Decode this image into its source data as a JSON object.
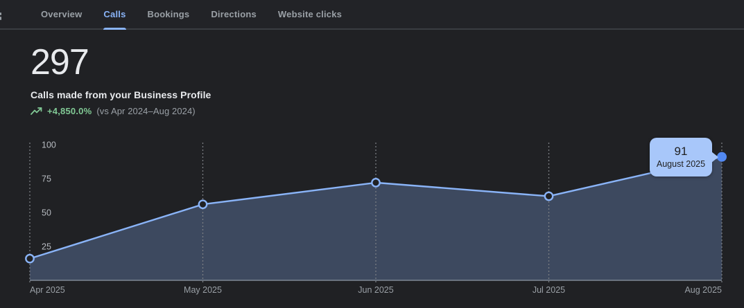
{
  "header": {
    "tabs": [
      {
        "label": "Overview"
      },
      {
        "label": "Calls"
      },
      {
        "label": "Bookings"
      },
      {
        "label": "Directions"
      },
      {
        "label": "Website clicks"
      }
    ],
    "active_tab": "Calls"
  },
  "summary": {
    "value": "297",
    "subtitle": "Calls made from your Business Profile",
    "trend_icon": "trending-up-icon",
    "trend_value": "+4,850.0%",
    "trend_comparison": "(vs Apr 2024–Aug 2024)"
  },
  "chart_data": {
    "type": "area",
    "title": "Calls made from your Business Profile",
    "categories": [
      "Apr 2025",
      "May 2025",
      "Jun 2025",
      "Jul 2025",
      "Aug 2025"
    ],
    "values": [
      16,
      56,
      72,
      62,
      91
    ],
    "xlabel": "",
    "ylabel": "",
    "ylim": [
      0,
      100
    ],
    "yticks": [
      25,
      50,
      75,
      100
    ],
    "grid": "vertical-dashed",
    "legend": "none",
    "tooltip": {
      "value": "91",
      "label": "August 2025",
      "point_index": 4
    }
  },
  "colors": {
    "background": "#202124",
    "accent_blue": "#8ab4f8",
    "area_fill": "rgba(138,180,248,0.28)",
    "active_dot": "#5289f2",
    "tooltip_bg": "#a8c7fa",
    "tooltip_text": "#1f1f1f",
    "positive_green": "#81c995",
    "muted_text": "#9aa0a6"
  }
}
